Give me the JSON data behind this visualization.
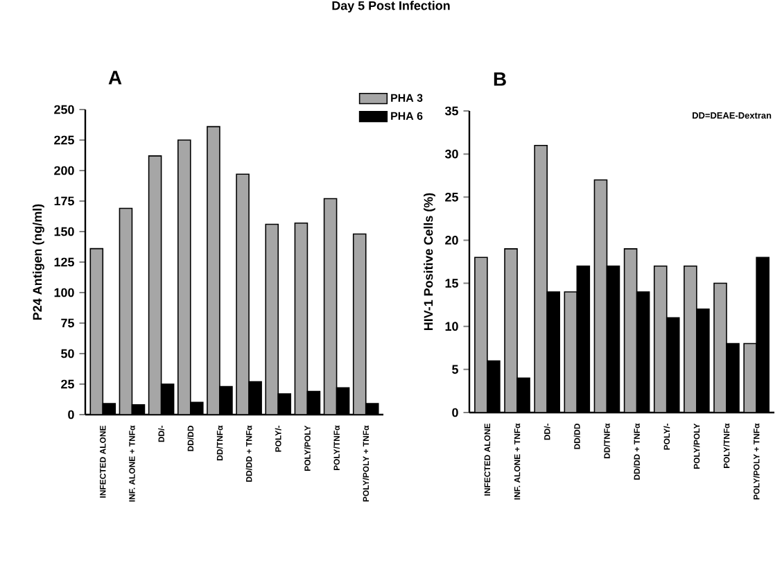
{
  "chart_data": [
    {
      "type": "bar",
      "title": "A",
      "annotations": [
        "Day 5 Post Infection"
      ],
      "ylabel": "P24 Antigen (ng/ml)",
      "categories": [
        "INFECTED ALONE",
        "INF. ALONE + TNFα",
        "DD/-",
        "DD/DD",
        "DD/TNFα",
        "DD/DD + TNFα",
        "POLY/-",
        "POLY/POLY",
        "POLY/TNFα",
        "POLY/POLY + TNFα"
      ],
      "series": [
        {
          "name": "PHA 3",
          "color": "#a6a6a6",
          "values": [
            136,
            169,
            212,
            225,
            236,
            197,
            156,
            157,
            177,
            148
          ]
        },
        {
          "name": "PHA 6",
          "color": "#000000",
          "values": [
            9,
            8,
            25,
            10,
            23,
            27,
            17,
            19,
            22,
            9
          ]
        }
      ],
      "ylim": [
        0,
        250
      ],
      "yticks": [
        0,
        25,
        50,
        75,
        100,
        125,
        150,
        175,
        200,
        225,
        250
      ],
      "legend": "top"
    },
    {
      "type": "bar",
      "title": "B",
      "annotations": [
        "DD=DEAE-Dextran"
      ],
      "ylabel": "HIV-1 Positive Cells (%)",
      "categories": [
        "INFECTED ALONE",
        "INF. ALONE + TNFα",
        "DD/-",
        "DD/DD",
        "DD/TNFα",
        "DD/DD + TNFα",
        "POLY/-",
        "POLY/POLY",
        "POLY/TNFα",
        "POLY/POLY + TNFα"
      ],
      "series": [
        {
          "color": "#a6a6a6",
          "values": [
            18,
            19,
            31,
            14,
            27,
            19,
            17,
            17,
            15,
            8
          ]
        },
        {
          "color": "#000000",
          "values": [
            6,
            4,
            14,
            17,
            17,
            14,
            11,
            12,
            8,
            18
          ]
        }
      ],
      "ylim": [
        0,
        35
      ],
      "yticks": [
        0,
        5,
        10,
        15,
        20,
        25,
        30,
        35
      ]
    }
  ]
}
